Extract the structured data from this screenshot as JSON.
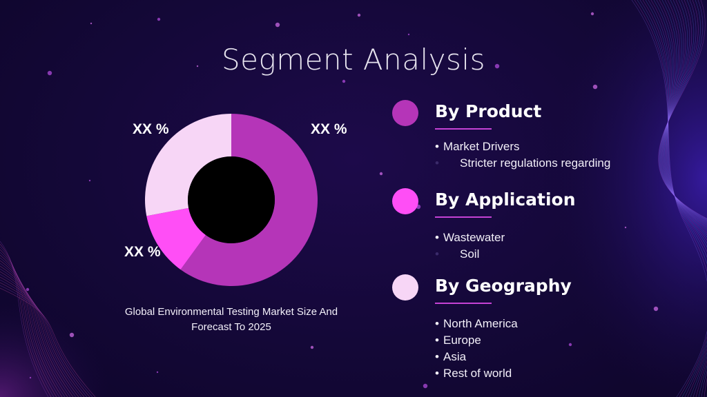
{
  "slide": {
    "title": "Segment Analysis",
    "caption": "Global Environmental Testing Market Size And Forecast To 2025"
  },
  "colors": {
    "background": "#150838",
    "primary_segment": "#b535b8",
    "secondary_segment": "#ff4ef6",
    "tertiary_segment": "#f7d6f6",
    "underline": "#c642d6"
  },
  "chart_data": {
    "type": "pie",
    "donut": true,
    "categories": [
      "",
      "",
      ""
    ],
    "values": [
      60,
      12,
      28
    ],
    "colors": [
      "#b535b8",
      "#ff4ef6",
      "#f7d6f6"
    ],
    "data_labels": [
      "XX %",
      "XX %",
      "XX %"
    ]
  },
  "segments": [
    {
      "title": "By Product",
      "dot_color": "#b535b8",
      "items": [
        {
          "text": "Market Drivers",
          "sub": false
        },
        {
          "text": "Stricter regulations regarding",
          "sub": true
        }
      ]
    },
    {
      "title": "By Application",
      "dot_color": "#ff4ef6",
      "items": [
        {
          "text": "Wastewater",
          "sub": false
        },
        {
          "text": "Soil",
          "sub": true
        }
      ]
    },
    {
      "title": "By Geography",
      "dot_color": "#f7d6f6",
      "items": [
        {
          "text": "North America",
          "sub": false
        },
        {
          "text": "Europe",
          "sub": false
        },
        {
          "text": "Asia",
          "sub": false
        },
        {
          "text": "Rest of world",
          "sub": false
        }
      ]
    }
  ]
}
